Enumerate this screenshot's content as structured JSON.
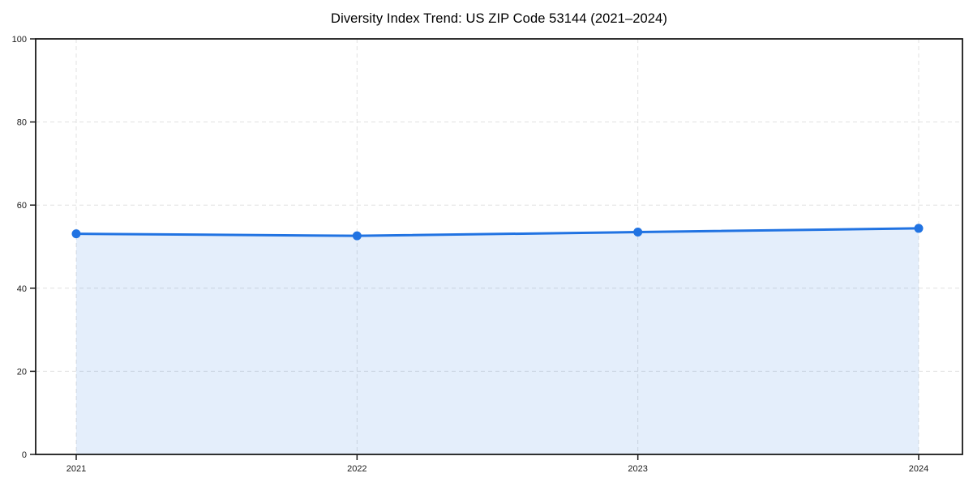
{
  "page": {
    "background_color": "#ffffff"
  },
  "chart_data": {
    "type": "line",
    "title": "Diversity Index Trend: US ZIP Code 53144 (2021–2024)",
    "x": [
      "2021",
      "2022",
      "2023",
      "2024"
    ],
    "series": [
      {
        "name": "Diversity Index",
        "values": [
          53.1,
          52.6,
          53.5,
          54.4
        ]
      }
    ],
    "xlabel": "",
    "ylabel": "",
    "ylim": [
      0,
      100
    ],
    "yticks": [
      0,
      20,
      40,
      60,
      80,
      100
    ],
    "grid": true,
    "grid_style": "dashed",
    "legend": false,
    "legend_position": "none",
    "colors": {
      "line": "#2173e2",
      "marker": "#2173e2",
      "area_fill": "rgba(33,115,226,0.12)",
      "gridline": "#e0e0e0",
      "axis": "#1a1a1a",
      "tick_text": "#1a1a1a",
      "title_text": "#000000"
    }
  }
}
